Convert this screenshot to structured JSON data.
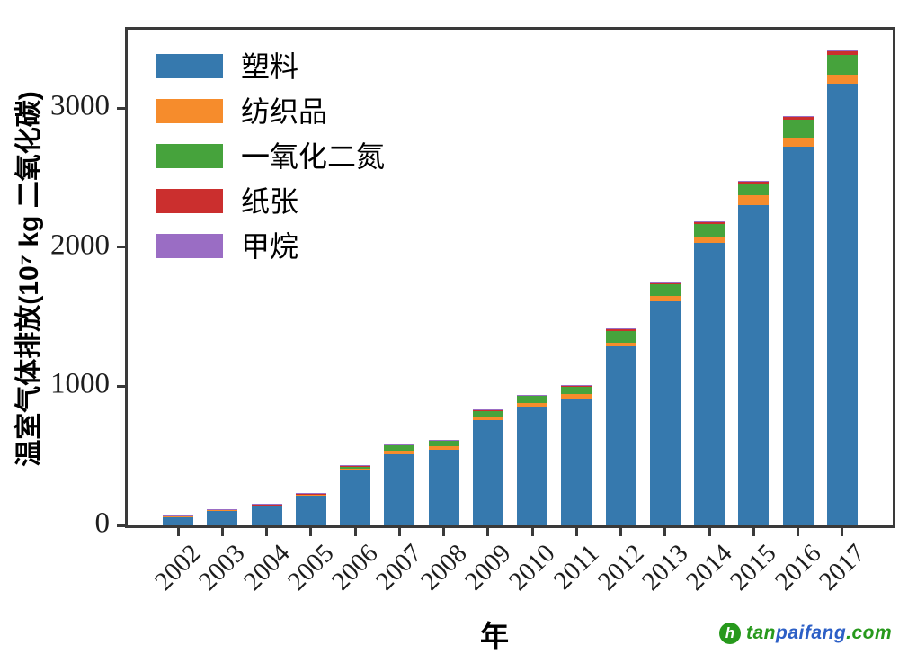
{
  "chart_data": {
    "type": "bar",
    "stacked": true,
    "title": "",
    "xlabel": "年",
    "ylabel": "温室气体排放(10⁷ kg 二氧化碳)",
    "categories": [
      "2002",
      "2003",
      "2004",
      "2005",
      "2006",
      "2007",
      "2008",
      "2009",
      "2010",
      "2011",
      "2012",
      "2013",
      "2014",
      "2015",
      "2016",
      "2017"
    ],
    "series": [
      {
        "key": "plastic",
        "name": "塑料",
        "color": "#3679ae",
        "values": [
          64,
          104,
          140,
          214,
          398,
          513,
          545,
          756,
          853,
          915,
          1285,
          1612,
          2032,
          2306,
          2726,
          3178
        ]
      },
      {
        "key": "textiles",
        "name": "纺织品",
        "color": "#f68c2c",
        "values": [
          2,
          3,
          3,
          4,
          8,
          26,
          26,
          26,
          26,
          30,
          30,
          41,
          43,
          71,
          65,
          61
        ]
      },
      {
        "key": "nitrous-oxide",
        "name": "一氧化二氮",
        "color": "#46a33c",
        "values": [
          5,
          7,
          8,
          10,
          22,
          43,
          41,
          45,
          55,
          57,
          85,
          82,
          92,
          82,
          129,
          146
        ]
      },
      {
        "key": "paper",
        "name": "纸张",
        "color": "#cb2f2e",
        "values": [
          1,
          1,
          1,
          1,
          2,
          2,
          2,
          3,
          4,
          4,
          13,
          13,
          19,
          19,
          22,
          26
        ]
      },
      {
        "key": "methane",
        "name": "甲烷",
        "color": "#9a6dc4",
        "values": [
          1,
          1,
          1,
          1,
          1,
          1,
          1,
          2,
          2,
          2,
          2,
          2,
          3,
          3,
          3,
          3
        ]
      }
    ],
    "yticks": [
      0,
      1000,
      2000,
      3000
    ],
    "ylim": [
      0,
      3565
    ],
    "grid": false,
    "legend_position": "upper left"
  },
  "watermark": {
    "logo_glyph": "h",
    "part_tan": "tan",
    "part_paifang": "paifang",
    "part_com": ".com",
    "green": "#27991c",
    "blue": "#2c5fc6"
  }
}
